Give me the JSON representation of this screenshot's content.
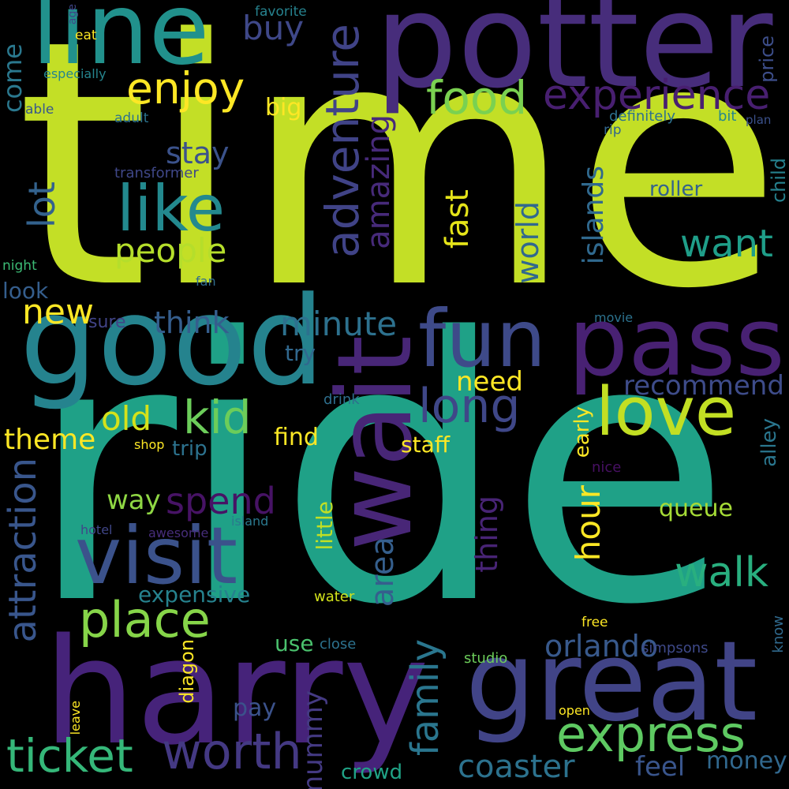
{
  "background": "#000000",
  "words": [
    {
      "text": "time",
      "color": "#c3df26"
    },
    {
      "text": "ride",
      "color": "#1fa187"
    },
    {
      "text": "harry",
      "color": "#46237a"
    },
    {
      "text": "potter",
      "color": "#472d7b"
    },
    {
      "text": "good",
      "color": "#25838e"
    },
    {
      "text": "great",
      "color": "#414487"
    },
    {
      "text": "pass",
      "color": "#482173"
    },
    {
      "text": "wait",
      "color": "#482677"
    },
    {
      "text": "line",
      "color": "#21918c"
    },
    {
      "text": "visit",
      "color": "#3b528b"
    },
    {
      "text": "fun",
      "color": "#3e4a89"
    },
    {
      "text": "love",
      "color": "#c2df23"
    },
    {
      "text": "like",
      "color": "#23898e"
    },
    {
      "text": "place",
      "color": "#86d549"
    },
    {
      "text": "express",
      "color": "#5ec962"
    },
    {
      "text": "worth",
      "color": "#443983"
    },
    {
      "text": "ticket",
      "color": "#35b779"
    },
    {
      "text": "food",
      "color": "#7ad151"
    },
    {
      "text": "experience",
      "color": "#481f70"
    },
    {
      "text": "enjoy",
      "color": "#fde725"
    },
    {
      "text": "kid",
      "color": "#6ccd5a"
    },
    {
      "text": "adventure",
      "color": "#404387"
    },
    {
      "text": "long",
      "color": "#3f4788"
    },
    {
      "text": "walk",
      "color": "#29af7f"
    },
    {
      "text": "attraction",
      "color": "#39568c"
    },
    {
      "text": "family",
      "color": "#2a768e"
    },
    {
      "text": "coaster",
      "color": "#2c728e"
    },
    {
      "text": "orlando",
      "color": "#38598c"
    },
    {
      "text": "spend",
      "color": "#471365"
    },
    {
      "text": "area",
      "color": "#355f8d"
    },
    {
      "text": "old",
      "color": "#d5e21a"
    },
    {
      "text": "people",
      "color": "#b5de2b"
    },
    {
      "text": "amazing",
      "color": "#472a7a"
    },
    {
      "text": "hour",
      "color": "#fde725"
    },
    {
      "text": "world",
      "color": "#31688e"
    },
    {
      "text": "lot",
      "color": "#33628d"
    },
    {
      "text": "want",
      "color": "#1f9e89"
    },
    {
      "text": "minute",
      "color": "#2d718e"
    },
    {
      "text": "recommend",
      "color": "#3e4c8a"
    },
    {
      "text": "theme",
      "color": "#fde725"
    },
    {
      "text": "new",
      "color": "#fde725"
    },
    {
      "text": "think",
      "color": "#355e8d"
    },
    {
      "text": "stay",
      "color": "#3b528b"
    },
    {
      "text": "way",
      "color": "#8fd744"
    },
    {
      "text": "thing",
      "color": "#482475"
    },
    {
      "text": "feel",
      "color": "#39558c"
    },
    {
      "text": "fast",
      "color": "#e5e419"
    },
    {
      "text": "islands",
      "color": "#30698e"
    },
    {
      "text": "buy",
      "color": "#3f4889"
    },
    {
      "text": "mummy",
      "color": "#443a83"
    },
    {
      "text": "need",
      "color": "#fde725"
    },
    {
      "text": "money",
      "color": "#31688e"
    },
    {
      "text": "expensive",
      "color": "#26828e"
    },
    {
      "text": "little",
      "color": "#c0df25"
    },
    {
      "text": "queue",
      "color": "#a5db36"
    },
    {
      "text": "crowd",
      "color": "#20a386"
    },
    {
      "text": "find",
      "color": "#fde725"
    },
    {
      "text": "trip",
      "color": "#2c728e"
    },
    {
      "text": "come",
      "color": "#2a788e"
    },
    {
      "text": "big",
      "color": "#fde725"
    },
    {
      "text": "roller",
      "color": "#33638d"
    },
    {
      "text": "staff",
      "color": "#fde725"
    },
    {
      "text": "use",
      "color": "#4ac16d"
    },
    {
      "text": "pay",
      "color": "#3b528b"
    },
    {
      "text": "look",
      "color": "#355e8d"
    },
    {
      "text": "try",
      "color": "#31688e"
    },
    {
      "text": "alley",
      "color": "#2a768e"
    },
    {
      "text": "diagon",
      "color": "#fde725"
    },
    {
      "text": "child",
      "color": "#26818e"
    },
    {
      "text": "price",
      "color": "#3d4e8a"
    },
    {
      "text": "early",
      "color": "#fde725"
    },
    {
      "text": "sure",
      "color": "#414487"
    },
    {
      "text": "definitely",
      "color": "#2d718e"
    },
    {
      "text": "especially",
      "color": "#25858e"
    },
    {
      "text": "transformer",
      "color": "#3f4788"
    },
    {
      "text": "hotel",
      "color": "#404688"
    },
    {
      "text": "awesome",
      "color": "#472d7b"
    },
    {
      "text": "island",
      "color": "#2a788e"
    },
    {
      "text": "water",
      "color": "#d2e21b"
    },
    {
      "text": "studio",
      "color": "#6ccd5a"
    },
    {
      "text": "simpsons",
      "color": "#3e4989"
    },
    {
      "text": "close",
      "color": "#2c728e"
    },
    {
      "text": "open",
      "color": "#fde725"
    },
    {
      "text": "free",
      "color": "#fde725"
    },
    {
      "text": "favorite",
      "color": "#26828e"
    },
    {
      "text": "eat",
      "color": "#fde725"
    },
    {
      "text": "age",
      "color": "#404588"
    },
    {
      "text": "able",
      "color": "#38588c"
    },
    {
      "text": "adult",
      "color": "#2c738e"
    },
    {
      "text": "bit",
      "color": "#24878e"
    },
    {
      "text": "rip",
      "color": "#31668e"
    },
    {
      "text": "plan",
      "color": "#3b518b"
    },
    {
      "text": "night",
      "color": "#3cbb75"
    },
    {
      "text": "fan",
      "color": "#2f6c8e"
    },
    {
      "text": "movie",
      "color": "#2c728e"
    },
    {
      "text": "drink",
      "color": "#2e6f8e"
    },
    {
      "text": "shop",
      "color": "#fde725"
    },
    {
      "text": "nice",
      "color": "#471063"
    },
    {
      "text": "leave",
      "color": "#fde725"
    },
    {
      "text": "know",
      "color": "#306a8e"
    }
  ]
}
